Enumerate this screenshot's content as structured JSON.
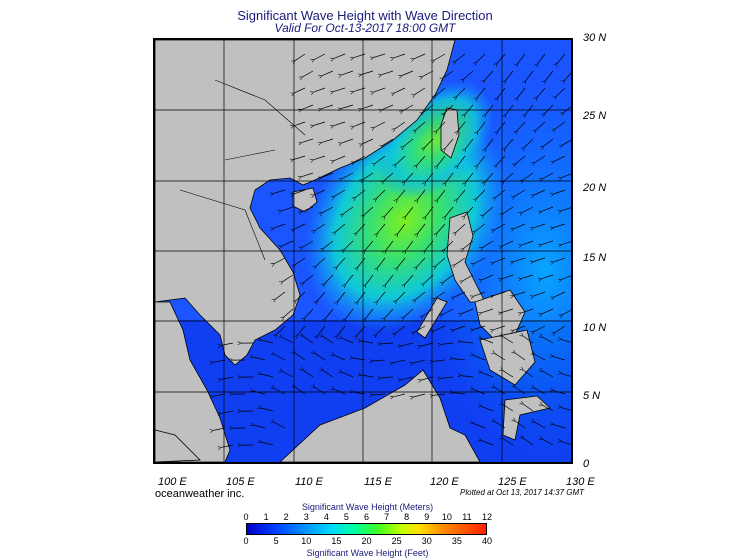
{
  "title": "Significant Wave Height with Wave Direction",
  "subtitle": "Valid For Oct-13-2017 18:00 GMT",
  "lat_labels": [
    "30 N",
    "25 N",
    "20 N",
    "15 N",
    "10 N",
    "5 N",
    "0"
  ],
  "lon_labels": [
    "100 E",
    "105 E",
    "110 E",
    "115 E",
    "120 E",
    "125 E",
    "130 E"
  ],
  "credit": "oceanweather inc.",
  "plotted": "Plotted at Oct 13, 2017 14:37 GMT",
  "legend": {
    "meters_title": "Significant Wave Height (Meters)",
    "meters_ticks": [
      "0",
      "1",
      "2",
      "3",
      "4",
      "5",
      "6",
      "7",
      "8",
      "9",
      "10",
      "11",
      "12"
    ],
    "feet_title": "Significant Wave Height (Feet)",
    "feet_ticks": [
      "0",
      "5",
      "10",
      "15",
      "20",
      "25",
      "30",
      "35",
      "40"
    ]
  },
  "colors": {
    "land": "#c0c0c0",
    "deep": "#1a3cff",
    "peak": "#58e82a",
    "title": "#1a1a7a"
  }
}
